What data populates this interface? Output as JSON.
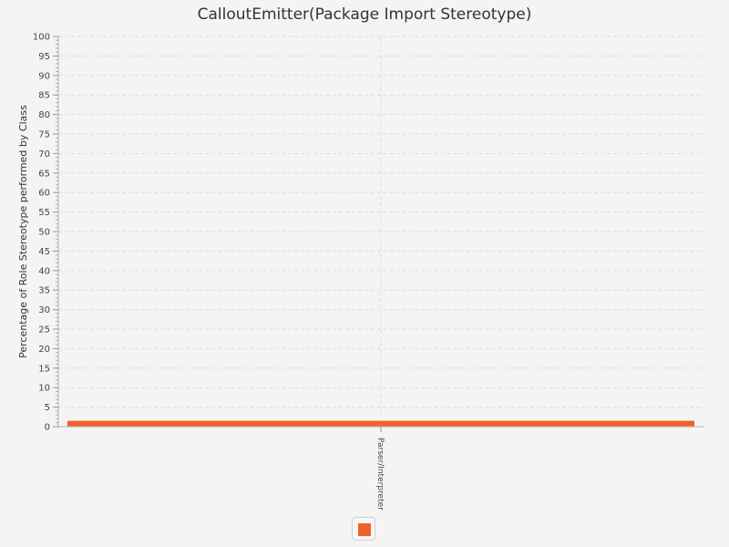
{
  "chart_data": {
    "type": "bar",
    "title": "CalloutEmitter(Package Import Stereotype)",
    "ylabel": "Percentage of Role Stereotype performed by Class",
    "xlabel": "",
    "categories": [
      "Parser/Interpreter"
    ],
    "series": [
      {
        "values": [
          1.5
        ],
        "color": "#f0622d"
      }
    ],
    "ylim": [
      0,
      100
    ],
    "y_major_step": 5,
    "y_minor_step": 1,
    "y_ticks": [
      "0",
      "5",
      "10",
      "15",
      "20",
      "25",
      "30",
      "35",
      "40",
      "45",
      "50",
      "55",
      "60",
      "65",
      "70",
      "75",
      "80",
      "85",
      "90",
      "95",
      "100"
    ],
    "grid": true,
    "legend": {
      "placement": "bottom-center",
      "icon": "series-color-swatch"
    }
  }
}
